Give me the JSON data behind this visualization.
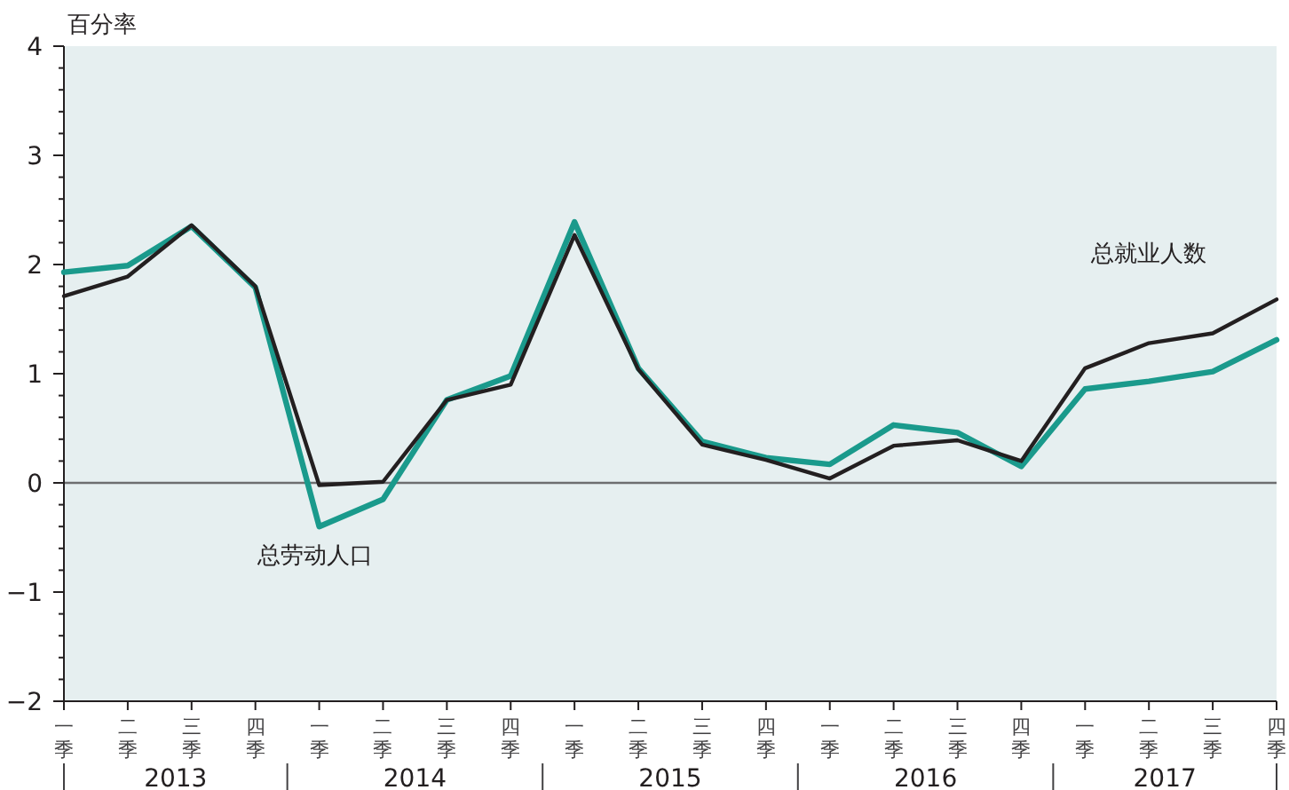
{
  "chart_data": {
    "type": "line",
    "ylabel": "百分率",
    "categories": [
      "一季",
      "二季",
      "三季",
      "四季",
      "一季",
      "二季",
      "三季",
      "四季",
      "一季",
      "二季",
      "三季",
      "四季",
      "一季",
      "二季",
      "三季",
      "四季",
      "一季",
      "二季",
      "三季",
      "四季"
    ],
    "annotations": [
      "2013",
      "2014",
      "2015",
      "2016",
      "2017"
    ],
    "ylim": [
      -2,
      4
    ],
    "yticks": [
      -2,
      -1,
      0,
      1,
      2,
      3,
      4
    ],
    "line_style": "solid",
    "ref_lines": [
      {
        "axis": "y",
        "value": 0,
        "color": "#6d6e70"
      }
    ],
    "series": [
      {
        "name": "总劳动人口",
        "color": "#1a9a8c",
        "values": [
          1.93,
          1.99,
          2.35,
          1.79,
          -0.4,
          -0.15,
          0.76,
          0.98,
          2.39,
          1.05,
          0.38,
          0.23,
          0.17,
          0.53,
          0.46,
          0.15,
          0.86,
          0.93,
          1.02,
          1.31
        ]
      },
      {
        "name": "总就业人数",
        "color": "#231f20",
        "values": [
          1.71,
          1.89,
          2.36,
          1.8,
          -0.02,
          0.01,
          0.76,
          0.9,
          2.27,
          1.04,
          0.35,
          0.21,
          0.04,
          0.34,
          0.39,
          0.2,
          1.05,
          1.28,
          1.37,
          1.68
        ]
      }
    ]
  }
}
